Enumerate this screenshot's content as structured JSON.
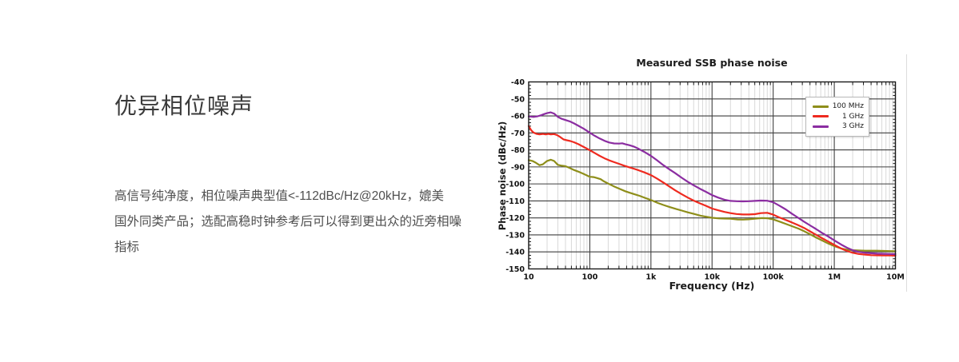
{
  "page": {
    "heading": "优异相位噪声",
    "body_lines": [
      "高信号纯净度，相位噪声典型值<-112dBc/Hz@20kHz，媲美",
      "国外同类产品；选配高稳时钟参考后可以得到更出众的近旁相噪",
      "指标"
    ]
  },
  "chart_data": {
    "type": "line",
    "title": "Measured SSB phase noise",
    "xlabel": "Frequency (Hz)",
    "ylabel": "Phase noise (dBc/Hz)",
    "x_scale": "log",
    "xlim": [
      10,
      10000000
    ],
    "ylim": [
      -150,
      -40
    ],
    "x_ticks": [
      {
        "value": 10,
        "label": "10"
      },
      {
        "value": 100,
        "label": "100"
      },
      {
        "value": 1000,
        "label": "1k"
      },
      {
        "value": 10000,
        "label": "10k"
      },
      {
        "value": 100000,
        "label": "100k"
      },
      {
        "value": 1000000,
        "label": "1M"
      },
      {
        "value": 10000000,
        "label": "10M"
      }
    ],
    "y_ticks": [
      -40,
      -50,
      -60,
      -70,
      -80,
      -90,
      -100,
      -110,
      -120,
      -130,
      -140,
      -150
    ],
    "grid": {
      "major_color": "#3f3f3f",
      "minor_color": "#d9d9d9",
      "border_color": "#1a1a1a",
      "text_color": "#111111",
      "minor_y_step": 2
    },
    "legend_position": "top-right",
    "series": [
      {
        "name": "100 MHz",
        "color": "#8e8e1a",
        "points": [
          [
            10,
            -86
          ],
          [
            11.5,
            -86.5
          ],
          [
            13,
            -87.5
          ],
          [
            15,
            -89
          ],
          [
            17,
            -88.5
          ],
          [
            20,
            -86.5
          ],
          [
            23,
            -85.8
          ],
          [
            26,
            -86.5
          ],
          [
            30,
            -88.8
          ],
          [
            35,
            -89.3
          ],
          [
            40,
            -89.6
          ],
          [
            46,
            -90.5
          ],
          [
            55,
            -91.8
          ],
          [
            65,
            -92.8
          ],
          [
            80,
            -94.2
          ],
          [
            100,
            -95.8
          ],
          [
            115,
            -96
          ],
          [
            130,
            -96.5
          ],
          [
            150,
            -97.2
          ],
          [
            170,
            -98.5
          ],
          [
            200,
            -99.8
          ],
          [
            240,
            -101.2
          ],
          [
            280,
            -102.3
          ],
          [
            320,
            -103.2
          ],
          [
            380,
            -104.3
          ],
          [
            450,
            -105.2
          ],
          [
            550,
            -106.2
          ],
          [
            650,
            -107
          ],
          [
            800,
            -108.2
          ],
          [
            1000,
            -109.5
          ],
          [
            1300,
            -111.2
          ],
          [
            1600,
            -112.4
          ],
          [
            2000,
            -113.5
          ],
          [
            2600,
            -114.8
          ],
          [
            3200,
            -115.7
          ],
          [
            4000,
            -116.7
          ],
          [
            5000,
            -117.6
          ],
          [
            6500,
            -118.7
          ],
          [
            8000,
            -119.3
          ],
          [
            10000,
            -119.9
          ],
          [
            13000,
            -120.3
          ],
          [
            16000,
            -120.4
          ],
          [
            20000,
            -120.5
          ],
          [
            26000,
            -120.9
          ],
          [
            32000,
            -121
          ],
          [
            40000,
            -120.8
          ],
          [
            50000,
            -120.5
          ],
          [
            65000,
            -120.1
          ],
          [
            80000,
            -120.2
          ],
          [
            100000,
            -120.9
          ],
          [
            130000,
            -122.3
          ],
          [
            160000,
            -123.5
          ],
          [
            200000,
            -124.8
          ],
          [
            260000,
            -126.3
          ],
          [
            320000,
            -127.8
          ],
          [
            400000,
            -129.6
          ],
          [
            500000,
            -131.5
          ],
          [
            650000,
            -133.5
          ],
          [
            800000,
            -135.1
          ],
          [
            1000000,
            -136.6
          ],
          [
            1300000,
            -138
          ],
          [
            1600000,
            -138.7
          ],
          [
            2000000,
            -139
          ],
          [
            2600000,
            -139.2
          ],
          [
            3200000,
            -139.3
          ],
          [
            4000000,
            -139.3
          ],
          [
            5000000,
            -139.3
          ],
          [
            6500000,
            -139.4
          ],
          [
            8000000,
            -139.5
          ],
          [
            10000000,
            -139.6
          ]
        ]
      },
      {
        "name": "1 GHz",
        "color": "#ee2a1f",
        "points": [
          [
            10,
            -66
          ],
          [
            11,
            -68.5
          ],
          [
            12,
            -69.8
          ],
          [
            13.5,
            -70.6
          ],
          [
            15,
            -70.9
          ],
          [
            17,
            -70.6
          ],
          [
            19,
            -70.9
          ],
          [
            21,
            -70.6
          ],
          [
            23,
            -70.9
          ],
          [
            26,
            -70.7
          ],
          [
            29,
            -71.2
          ],
          [
            33,
            -72.5
          ],
          [
            37,
            -73.8
          ],
          [
            42,
            -74.3
          ],
          [
            48,
            -74.8
          ],
          [
            55,
            -75.5
          ],
          [
            65,
            -76.6
          ],
          [
            80,
            -78.3
          ],
          [
            100,
            -80.2
          ],
          [
            120,
            -81.8
          ],
          [
            145,
            -83.5
          ],
          [
            175,
            -85
          ],
          [
            210,
            -86.2
          ],
          [
            250,
            -87.2
          ],
          [
            300,
            -88.2
          ],
          [
            360,
            -89.2
          ],
          [
            430,
            -90.1
          ],
          [
            520,
            -91
          ],
          [
            630,
            -92
          ],
          [
            780,
            -93.2
          ],
          [
            1000,
            -94.8
          ],
          [
            1250,
            -96.8
          ],
          [
            1600,
            -99.2
          ],
          [
            2000,
            -101.5
          ],
          [
            2500,
            -103.8
          ],
          [
            3200,
            -106.1
          ],
          [
            4000,
            -108
          ],
          [
            5000,
            -109.8
          ],
          [
            6300,
            -111.4
          ],
          [
            8000,
            -112.9
          ],
          [
            10000,
            -114.5
          ],
          [
            12500,
            -115.5
          ],
          [
            16000,
            -116.5
          ],
          [
            20000,
            -117.2
          ],
          [
            25000,
            -117.7
          ],
          [
            32000,
            -118
          ],
          [
            40000,
            -118
          ],
          [
            50000,
            -117.8
          ],
          [
            63000,
            -117.2
          ],
          [
            80000,
            -117
          ],
          [
            100000,
            -118.1
          ],
          [
            125000,
            -119.7
          ],
          [
            160000,
            -121.2
          ],
          [
            200000,
            -122.6
          ],
          [
            250000,
            -124.1
          ],
          [
            320000,
            -125.9
          ],
          [
            400000,
            -127.9
          ],
          [
            500000,
            -129.9
          ],
          [
            630000,
            -131.9
          ],
          [
            800000,
            -133.9
          ],
          [
            1000000,
            -135.9
          ],
          [
            1300000,
            -138
          ],
          [
            1600000,
            -139.4
          ],
          [
            2000000,
            -140.5
          ],
          [
            2500000,
            -141.2
          ],
          [
            3200000,
            -141.6
          ],
          [
            4000000,
            -141.9
          ],
          [
            5000000,
            -142
          ],
          [
            6500000,
            -142.1
          ],
          [
            8000000,
            -142.1
          ],
          [
            10000000,
            -142.2
          ]
        ]
      },
      {
        "name": "3 GHz",
        "color": "#8b2da1",
        "points": [
          [
            10,
            -60.3
          ],
          [
            12,
            -60.6
          ],
          [
            14,
            -60.2
          ],
          [
            16,
            -59.6
          ],
          [
            18,
            -58.9
          ],
          [
            20,
            -58.4
          ],
          [
            23,
            -57.9
          ],
          [
            26,
            -58.6
          ],
          [
            30,
            -60.6
          ],
          [
            34,
            -61.6
          ],
          [
            40,
            -62.4
          ],
          [
            47,
            -63.2
          ],
          [
            55,
            -64.4
          ],
          [
            65,
            -65.8
          ],
          [
            80,
            -67.6
          ],
          [
            100,
            -69.9
          ],
          [
            120,
            -71.7
          ],
          [
            145,
            -73.3
          ],
          [
            175,
            -74.7
          ],
          [
            210,
            -75.7
          ],
          [
            250,
            -76.2
          ],
          [
            300,
            -76.3
          ],
          [
            340,
            -76.1
          ],
          [
            380,
            -76.6
          ],
          [
            450,
            -77.3
          ],
          [
            520,
            -78
          ],
          [
            630,
            -79.4
          ],
          [
            780,
            -81.2
          ],
          [
            1000,
            -83.5
          ],
          [
            1250,
            -86
          ],
          [
            1600,
            -89
          ],
          [
            2000,
            -91.4
          ],
          [
            2500,
            -93.7
          ],
          [
            3200,
            -96.4
          ],
          [
            4000,
            -98.7
          ],
          [
            5000,
            -100.8
          ],
          [
            6300,
            -102.8
          ],
          [
            8000,
            -104.7
          ],
          [
            10000,
            -106.6
          ],
          [
            12500,
            -108
          ],
          [
            16000,
            -109.3
          ],
          [
            20000,
            -110
          ],
          [
            25000,
            -110.2
          ],
          [
            32000,
            -110.3
          ],
          [
            40000,
            -110.2
          ],
          [
            50000,
            -110
          ],
          [
            63000,
            -109.8
          ],
          [
            80000,
            -109.9
          ],
          [
            100000,
            -110.8
          ],
          [
            125000,
            -112.7
          ],
          [
            160000,
            -115
          ],
          [
            200000,
            -117.4
          ],
          [
            250000,
            -119.7
          ],
          [
            320000,
            -122.2
          ],
          [
            400000,
            -124.4
          ],
          [
            500000,
            -126.5
          ],
          [
            630000,
            -128.8
          ],
          [
            800000,
            -131
          ],
          [
            1000000,
            -133.2
          ],
          [
            1300000,
            -135.7
          ],
          [
            1600000,
            -137.5
          ],
          [
            2000000,
            -139
          ],
          [
            2500000,
            -140
          ],
          [
            3200000,
            -140.5
          ],
          [
            4000000,
            -140.8
          ],
          [
            5000000,
            -141
          ],
          [
            6500000,
            -141.1
          ],
          [
            8000000,
            -141.2
          ],
          [
            10000000,
            -141.3
          ]
        ]
      }
    ]
  }
}
